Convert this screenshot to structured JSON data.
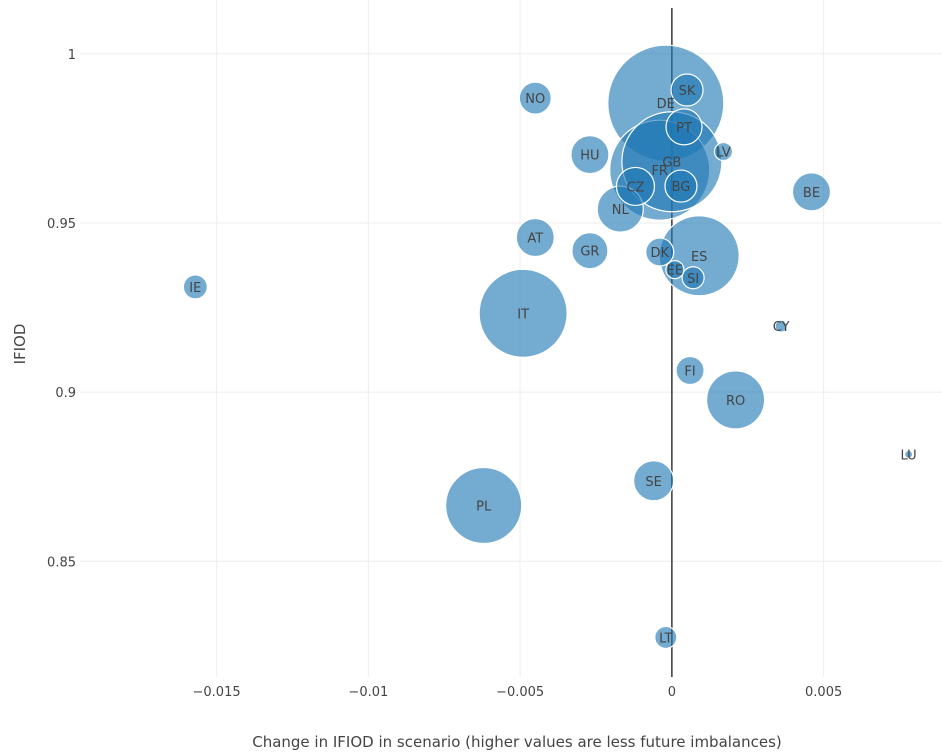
{
  "chart_data": {
    "type": "scatter",
    "title": "",
    "xlabel": "Change in IFIOD in scenario (higher values are less future imbalances)",
    "ylabel": "IFIOD",
    "xlim": [
      -0.0195,
      0.0089
    ],
    "ylim": [
      0.8158,
      1.0159
    ],
    "x_ticks": [
      -0.015,
      -0.01,
      -0.005,
      0,
      0.005
    ],
    "x_tick_labels": [
      "−0.015",
      "−0.01",
      "−0.005",
      "0",
      "0.005"
    ],
    "y_ticks": [
      0.85,
      0.9,
      0.95,
      1
    ],
    "y_tick_labels": [
      "0.85",
      "0.9",
      "0.95",
      "1"
    ],
    "grid": true,
    "zero_line": true,
    "marker_color": "#1f77b4",
    "points": [
      {
        "label": "IE",
        "x": -0.0157,
        "y": 0.9311,
        "size": 12
      },
      {
        "label": "NO",
        "x": -0.0045,
        "y": 0.9869,
        "size": 16
      },
      {
        "label": "HU",
        "x": -0.0027,
        "y": 0.9702,
        "size": 19
      },
      {
        "label": "AT",
        "x": -0.0045,
        "y": 0.9457,
        "size": 19
      },
      {
        "label": "GR",
        "x": -0.0027,
        "y": 0.9418,
        "size": 18
      },
      {
        "label": "IT",
        "x": -0.0049,
        "y": 0.9233,
        "size": 44
      },
      {
        "label": "PL",
        "x": -0.0062,
        "y": 0.8665,
        "size": 38
      },
      {
        "label": "NL",
        "x": -0.0017,
        "y": 0.9541,
        "size": 23
      },
      {
        "label": "CZ",
        "x": -0.0012,
        "y": 0.9608,
        "size": 19
      },
      {
        "label": "DE",
        "x": -0.0002,
        "y": 0.9854,
        "size": 58
      },
      {
        "label": "FR",
        "x": -0.0004,
        "y": 0.9656,
        "size": 50
      },
      {
        "label": "GB",
        "x": 0.0,
        "y": 0.9681,
        "size": 50
      },
      {
        "label": "BG",
        "x": 0.0003,
        "y": 0.9609,
        "size": 16
      },
      {
        "label": "SK",
        "x": 0.0005,
        "y": 0.9893,
        "size": 16
      },
      {
        "label": "PT",
        "x": 0.0004,
        "y": 0.9784,
        "size": 18
      },
      {
        "label": "LV",
        "x": 0.0017,
        "y": 0.9711,
        "size": 9
      },
      {
        "label": "DK",
        "x": -0.0004,
        "y": 0.9414,
        "size": 14
      },
      {
        "label": "EE",
        "x": 0.0001,
        "y": 0.9362,
        "size": 9
      },
      {
        "label": "SI",
        "x": 0.0007,
        "y": 0.9338,
        "size": 11
      },
      {
        "label": "ES",
        "x": 0.0009,
        "y": 0.9403,
        "size": 40
      },
      {
        "label": "BE",
        "x": 0.0046,
        "y": 0.9592,
        "size": 19
      },
      {
        "label": "CY",
        "x": 0.0036,
        "y": 0.9195,
        "size": 6
      },
      {
        "label": "FI",
        "x": 0.0006,
        "y": 0.9064,
        "size": 14
      },
      {
        "label": "RO",
        "x": 0.0021,
        "y": 0.8977,
        "size": 29
      },
      {
        "label": "SE",
        "x": -0.0006,
        "y": 0.8738,
        "size": 20
      },
      {
        "label": "LU",
        "x": 0.0078,
        "y": 0.8816,
        "size": 4
      },
      {
        "label": "LT",
        "x": -0.0002,
        "y": 0.8275,
        "size": 11
      }
    ]
  }
}
